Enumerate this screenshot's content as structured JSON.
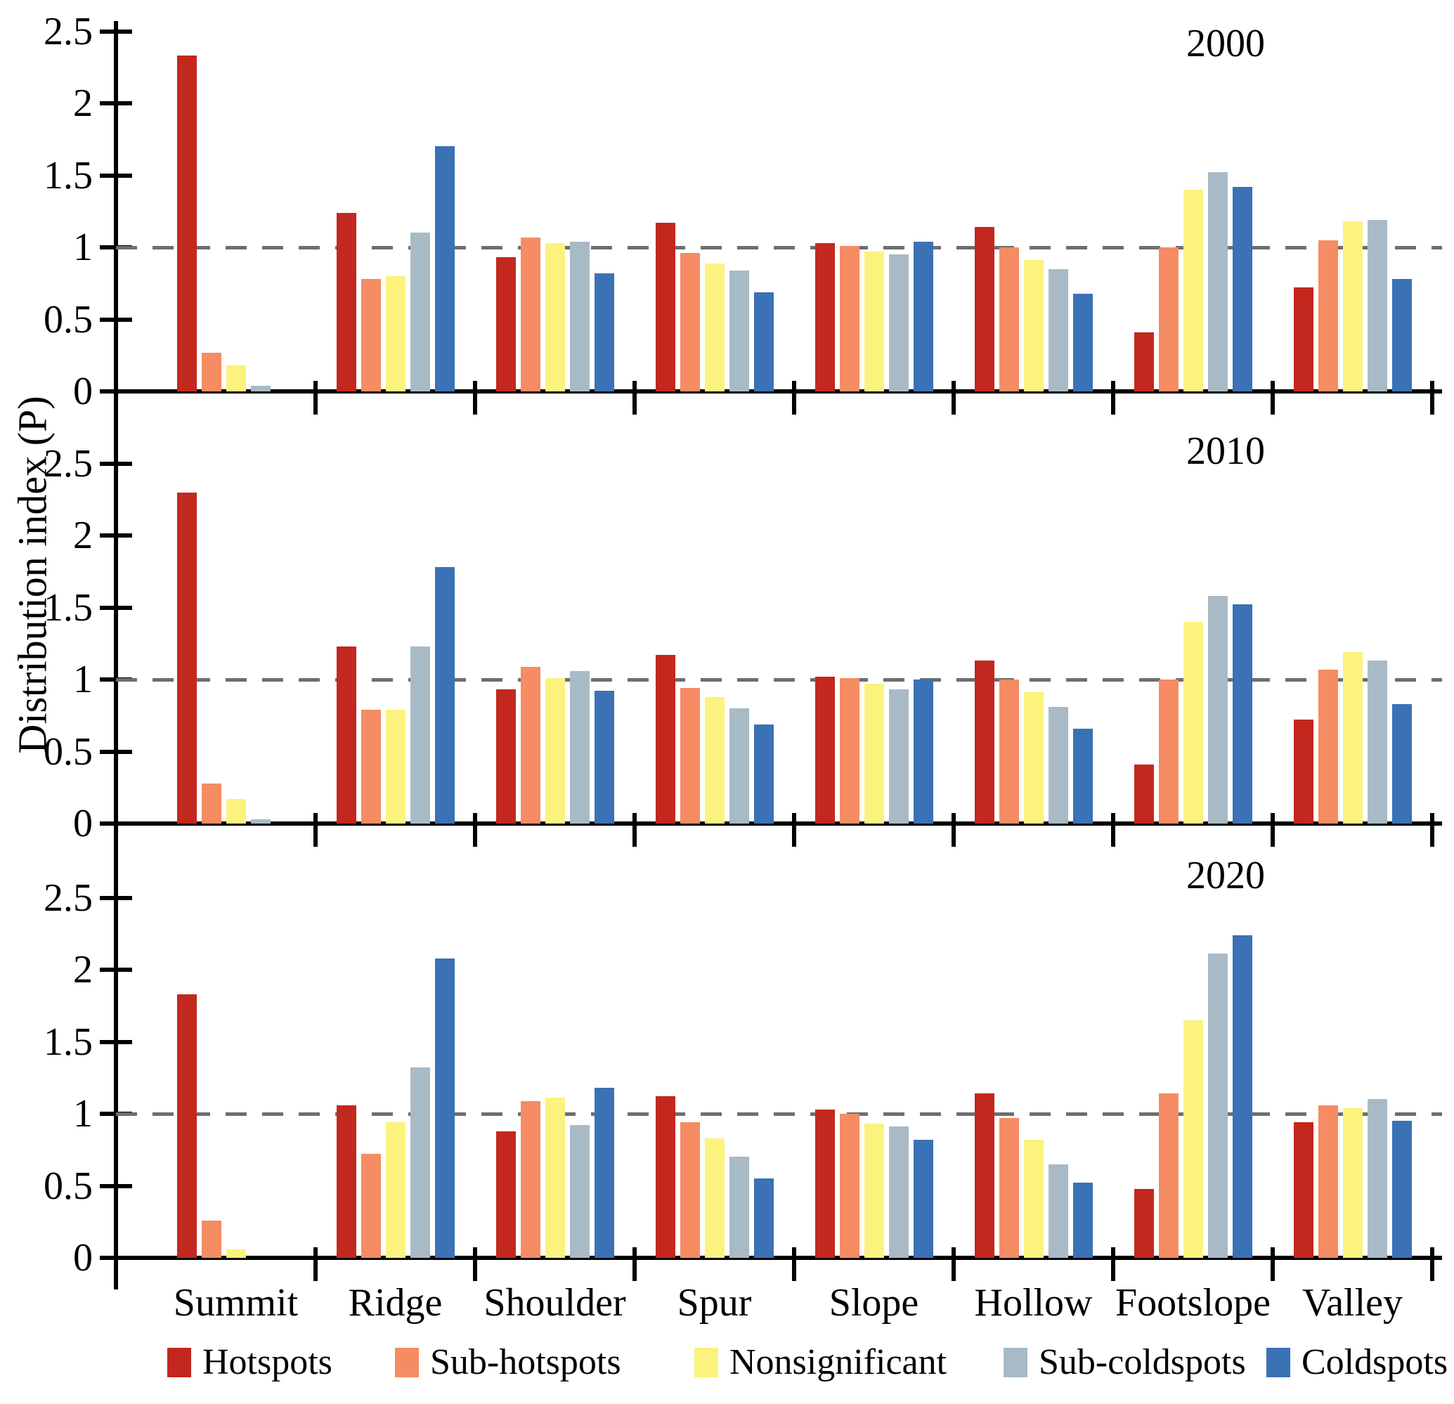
{
  "chart_data": {
    "type": "bar",
    "title": "",
    "ylabel": "Distribution index (P)",
    "xlabel": "",
    "categories": [
      "Summit",
      "Ridge",
      "Shoulder",
      "Spur",
      "Slope",
      "Hollow",
      "Footslope",
      "Valley"
    ],
    "series_names": [
      "Hotspots",
      "Sub-hotspots",
      "Nonsignificant",
      "Sub-coldspots",
      "Coldspots"
    ],
    "series_colors": [
      "#C2281E",
      "#F58C63",
      "#FBF37D",
      "#A8BAC6",
      "#3B71B5"
    ],
    "yticks": [
      0,
      0.5,
      1,
      1.5,
      2,
      2.5
    ],
    "ytick_labels": [
      "0",
      "0.5",
      "1",
      "1.5",
      "2",
      "2.5"
    ],
    "ylim": [
      0,
      2.9
    ],
    "grid": false,
    "reference_line": 1,
    "reference_line_style": "dashed gray",
    "legend_position": "bottom",
    "panels": [
      {
        "year": "2000",
        "series": [
          {
            "name": "Hotspots",
            "values": [
              2.33,
              1.24,
              0.93,
              1.17,
              1.03,
              1.14,
              0.41,
              0.72
            ]
          },
          {
            "name": "Sub-hotspots",
            "values": [
              0.27,
              0.78,
              1.07,
              0.96,
              1.01,
              1.0,
              1.0,
              1.05
            ]
          },
          {
            "name": "Nonsignificant",
            "values": [
              0.18,
              0.8,
              1.03,
              0.89,
              0.97,
              0.91,
              1.4,
              1.18
            ]
          },
          {
            "name": "Sub-coldspots",
            "values": [
              0.04,
              1.1,
              1.04,
              0.84,
              0.95,
              0.85,
              1.52,
              1.19
            ]
          },
          {
            "name": "Coldspots",
            "values": [
              0,
              1.7,
              0.82,
              0.69,
              1.04,
              0.68,
              1.42,
              0.78
            ]
          }
        ]
      },
      {
        "year": "2010",
        "series": [
          {
            "name": "Hotspots",
            "values": [
              2.3,
              1.23,
              0.93,
              1.17,
              1.02,
              1.13,
              0.41,
              0.72
            ]
          },
          {
            "name": "Sub-hotspots",
            "values": [
              0.28,
              0.79,
              1.09,
              0.94,
              1.01,
              1.0,
              1.0,
              1.07
            ]
          },
          {
            "name": "Nonsignificant",
            "values": [
              0.17,
              0.79,
              1.01,
              0.88,
              0.97,
              0.91,
              1.4,
              1.19
            ]
          },
          {
            "name": "Sub-coldspots",
            "values": [
              0.03,
              1.23,
              1.06,
              0.8,
              0.93,
              0.81,
              1.58,
              1.13
            ]
          },
          {
            "name": "Coldspots",
            "values": [
              0,
              1.78,
              0.92,
              0.69,
              1.0,
              0.66,
              1.52,
              0.83
            ]
          }
        ]
      },
      {
        "year": "2020",
        "series": [
          {
            "name": "Hotspots",
            "values": [
              1.83,
              1.06,
              0.88,
              1.12,
              1.03,
              1.14,
              0.48,
              0.94
            ]
          },
          {
            "name": "Sub-hotspots",
            "values": [
              0.26,
              0.72,
              1.09,
              0.94,
              1.0,
              0.97,
              1.14,
              1.06
            ]
          },
          {
            "name": "Nonsignificant",
            "values": [
              0.06,
              0.94,
              1.11,
              0.83,
              0.93,
              0.82,
              1.65,
              1.04
            ]
          },
          {
            "name": "Sub-coldspots",
            "values": [
              0,
              1.32,
              0.92,
              0.7,
              0.91,
              0.65,
              2.11,
              1.1
            ]
          },
          {
            "name": "Coldspots",
            "values": [
              0,
              2.08,
              1.18,
              0.55,
              0.82,
              0.52,
              2.24,
              0.95
            ]
          }
        ]
      }
    ]
  }
}
